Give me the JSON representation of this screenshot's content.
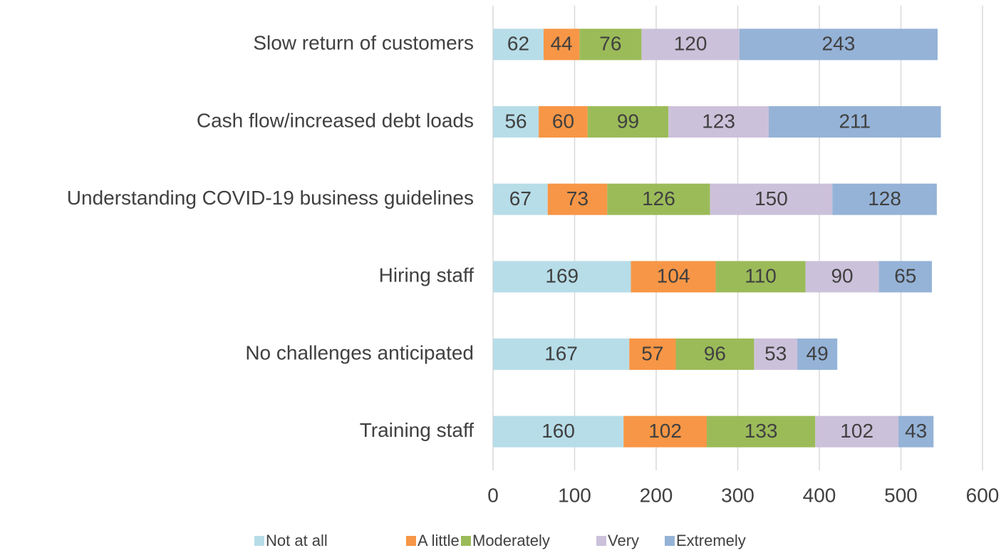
{
  "chart_data": {
    "type": "stacked_bar_horizontal",
    "categories": [
      "Slow return of customers",
      "Cash flow/increased debt loads",
      "Understanding COVID-19 business guidelines",
      "Hiring staff",
      "No challenges anticipated",
      "Training staff"
    ],
    "series": [
      {
        "name": "Not at all",
        "color": "#b7dde8",
        "values": [
          62,
          56,
          67,
          169,
          167,
          160
        ]
      },
      {
        "name": "A little",
        "color": "#f79646",
        "values": [
          44,
          60,
          73,
          104,
          57,
          102
        ]
      },
      {
        "name": "Moderately",
        "color": "#9bbb59",
        "values": [
          76,
          99,
          126,
          110,
          96,
          133
        ]
      },
      {
        "name": "Very",
        "color": "#ccc1da",
        "values": [
          120,
          123,
          150,
          90,
          53,
          102
        ]
      },
      {
        "name": "Extremely",
        "color": "#95b3d7",
        "values": [
          243,
          211,
          128,
          65,
          49,
          43
        ]
      }
    ],
    "xlim": [
      0,
      600
    ],
    "xticks": [
      0,
      100,
      200,
      300,
      400,
      500,
      600
    ],
    "grid": true,
    "legend": "bottom"
  }
}
